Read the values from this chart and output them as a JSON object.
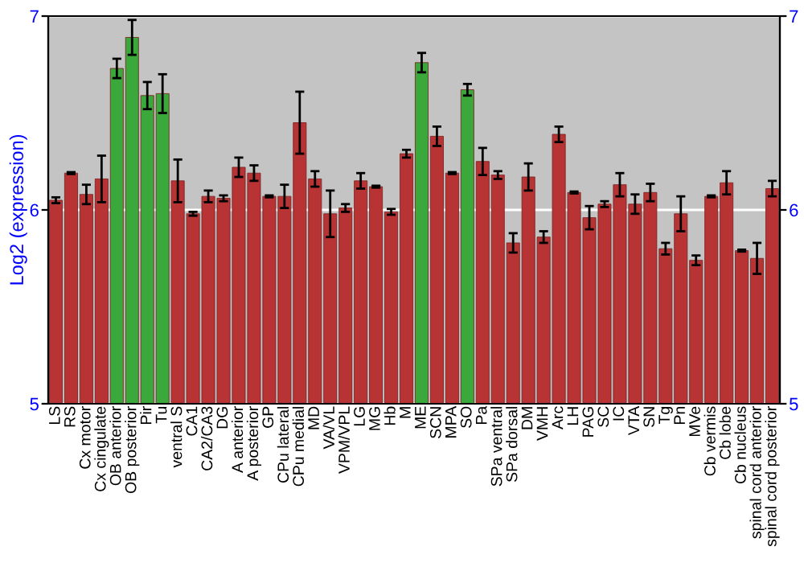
{
  "chart_data": {
    "type": "bar",
    "ylabel": "Log2 (expression)",
    "categories": [
      "LS",
      "RS",
      "Cx motor",
      "Cx cingulate",
      "OB anterior",
      "OB posterior",
      "Pir",
      "Tu",
      "ventral S",
      "CA1",
      "CA2/CA3",
      "DG",
      "A anterior",
      "A posterior",
      "GP",
      "CPu lateral",
      "CPu medial",
      "MD",
      "VA/VL",
      "VPM/VPL",
      "LG",
      "MG",
      "Hb",
      "M",
      "ME",
      "SCN",
      "MPA",
      "SO",
      "Pa",
      "SPa ventral",
      "SPa dorsal",
      "DM",
      "VMH",
      "Arc",
      "LH",
      "PAG",
      "SC",
      "IC",
      "VTA",
      "SN",
      "Tg",
      "Pn",
      "MVe",
      "Cb vermis",
      "Cb lobe",
      "Cb nucleus",
      "spinal cord anterior",
      "spinal cord posterior"
    ],
    "values": [
      6.05,
      6.19,
      6.08,
      6.16,
      6.73,
      6.89,
      6.59,
      6.6,
      6.15,
      5.98,
      6.07,
      6.06,
      6.22,
      6.19,
      6.07,
      6.07,
      6.45,
      6.16,
      5.98,
      6.01,
      6.15,
      6.12,
      5.99,
      6.29,
      6.76,
      6.38,
      6.19,
      6.62,
      6.25,
      6.18,
      5.83,
      6.17,
      5.86,
      6.39,
      6.09,
      5.96,
      6.03,
      6.13,
      6.03,
      6.09,
      5.8,
      5.98,
      5.74,
      6.07,
      6.14,
      5.79,
      5.75,
      6.11
    ],
    "errors": [
      0.015,
      0.005,
      0.05,
      0.12,
      0.05,
      0.09,
      0.07,
      0.1,
      0.11,
      0.01,
      0.03,
      0.015,
      0.05,
      0.04,
      0.005,
      0.06,
      0.16,
      0.04,
      0.12,
      0.02,
      0.04,
      0.005,
      0.015,
      0.02,
      0.05,
      0.05,
      0.005,
      0.03,
      0.07,
      0.02,
      0.05,
      0.07,
      0.03,
      0.04,
      0.005,
      0.06,
      0.015,
      0.06,
      0.05,
      0.045,
      0.03,
      0.09,
      0.025,
      0.005,
      0.06,
      0.005,
      0.08,
      0.04
    ],
    "colors": [
      "#b83434",
      "#b83434",
      "#b83434",
      "#b83434",
      "#3aa83a",
      "#3aa83a",
      "#3aa83a",
      "#3aa83a",
      "#b83434",
      "#b83434",
      "#b83434",
      "#b83434",
      "#b83434",
      "#b83434",
      "#b83434",
      "#b83434",
      "#b83434",
      "#b83434",
      "#b83434",
      "#b83434",
      "#b83434",
      "#b83434",
      "#b83434",
      "#b83434",
      "#3aa83a",
      "#b83434",
      "#b83434",
      "#3aa83a",
      "#b83434",
      "#b83434",
      "#b83434",
      "#b83434",
      "#b83434",
      "#b83434",
      "#b83434",
      "#b83434",
      "#b83434",
      "#b83434",
      "#b83434",
      "#b83434",
      "#b83434",
      "#b83434",
      "#b83434",
      "#b83434",
      "#b83434",
      "#b83434",
      "#b83434",
      "#b83434"
    ],
    "ylim": [
      5,
      7
    ],
    "yticks": [
      5,
      6,
      7
    ],
    "y2lim": [
      5,
      7
    ],
    "y2ticks": [
      5,
      6,
      7
    ],
    "grid": "y"
  }
}
